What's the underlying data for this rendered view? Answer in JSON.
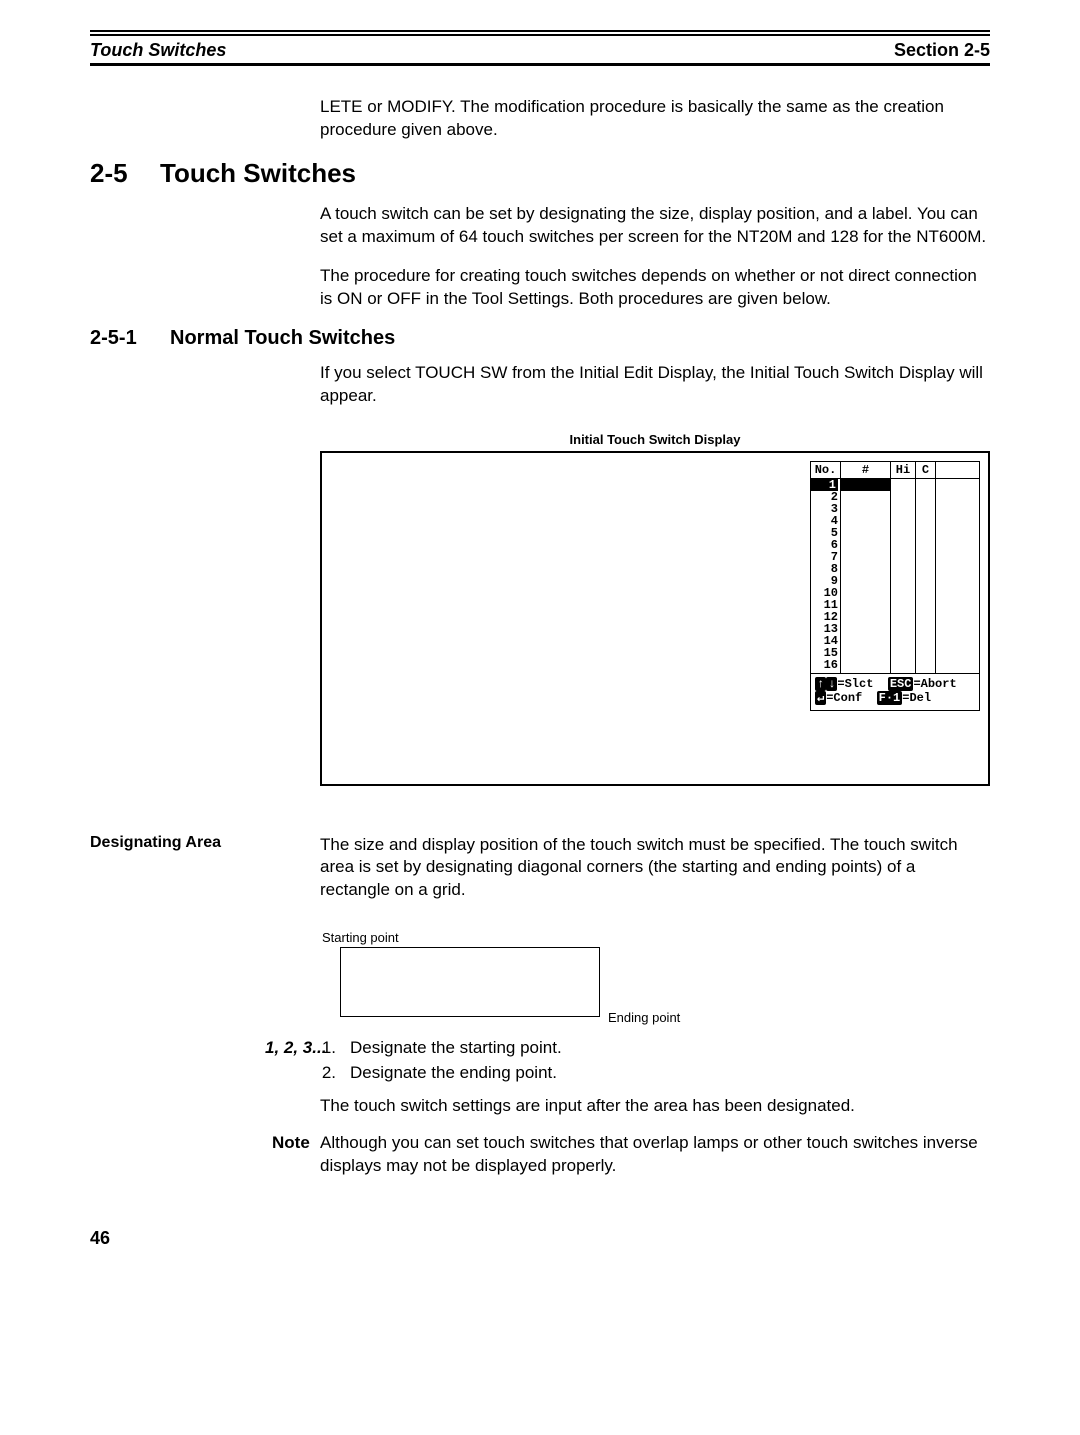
{
  "header": {
    "left": "Touch Switches",
    "right": "Section 2-5"
  },
  "intro_cont": "LETE or MODIFY. The modification procedure is basically the same as the creation procedure given above.",
  "sec": {
    "num": "2-5",
    "title": "Touch Switches",
    "p1": "A touch switch can be set by designating the size, display position, and a label. You can set a maximum of 64 touch switches per screen for the NT20M and 128 for the NT600M.",
    "p2": "The procedure for creating touch switches depends on whether or not direct connection is ON or OFF in the Tool Settings. Both procedures are given below."
  },
  "subsec": {
    "num": "2-5-1",
    "title": "Normal Touch Switches",
    "p1": "If you select TOUCH SW from the Initial Edit Display, the Initial Touch Switch Display will appear."
  },
  "figure": {
    "caption": "Initial Touch Switch Display",
    "columns": {
      "no": "No.",
      "hash": "#",
      "hi": "Hi",
      "c": "C"
    },
    "rows": [
      "1",
      "2",
      "3",
      "4",
      "5",
      "6",
      "7",
      "8",
      "9",
      "10",
      "11",
      "12",
      "13",
      "14",
      "15",
      "16"
    ],
    "selected_row_index": 0,
    "footer": {
      "slct_keys": "↑ ↓",
      "slct_label": "=Slct",
      "abort_key": "ESC",
      "abort_label": "=Abort",
      "conf_key": "↵",
      "conf_label": "=Conf",
      "del_key": "F·1",
      "del_label": "=Del"
    }
  },
  "designating": {
    "side": "Designating Area",
    "p1": "The size and display position of the touch switch must be specified. The touch switch area is set by designating diagonal corners (the starting and ending points) of a rectangle on a grid.",
    "start_label": "Starting point",
    "end_label": "Ending point"
  },
  "steps": {
    "lead": "1, 2, 3...",
    "s1_num": "1.",
    "s1": "Designate the starting point.",
    "s2_num": "2.",
    "s2": "Designate the ending point.",
    "after": "The touch switch settings are input after the area has been designated."
  },
  "note": {
    "lead": "Note",
    "text": "Although you can set touch switches that overlap lamps or other touch switches inverse displays may not be displayed properly."
  },
  "page": "46"
}
